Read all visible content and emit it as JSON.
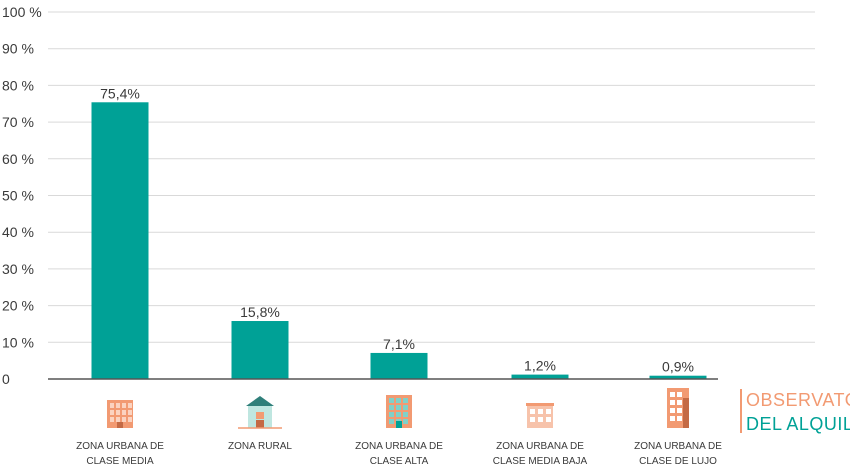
{
  "chart_data": {
    "type": "bar",
    "categories": [
      [
        "ZONA URBANA DE",
        "CLASE MEDIA"
      ],
      [
        "ZONA RURAL"
      ],
      [
        "ZONA URBANA DE",
        "CLASE ALTA"
      ],
      [
        "ZONA URBANA DE",
        "CLASE MEDIA BAJA"
      ],
      [
        "ZONA URBANA DE",
        "CLASE DE LUJO"
      ]
    ],
    "values": [
      75.4,
      15.8,
      7.1,
      1.2,
      0.9
    ],
    "value_labels": [
      "75,4%",
      "15,8%",
      "7,1%",
      "1,2%",
      "0,9%"
    ],
    "yticks": [
      0,
      10,
      20,
      30,
      40,
      50,
      60,
      70,
      80,
      90,
      100
    ],
    "ytick_labels": [
      "0",
      "10 %",
      "20 %",
      "30 %",
      "40 %",
      "50 %",
      "60 %",
      "70 %",
      "80 %",
      "90 %",
      "100 %"
    ],
    "ylim": [
      0,
      100
    ],
    "grid": true,
    "title": "",
    "xlabel": "",
    "ylabel": ""
  },
  "colors": {
    "bar": "#00a196",
    "grid": "#d9d9d9",
    "axis": "#555555",
    "logo_orange": "#f29a72",
    "logo_teal": "#00a196"
  },
  "icons": [
    "building-urban-middle-icon",
    "house-rural-icon",
    "building-urban-high-icon",
    "building-urban-lowmiddle-icon",
    "building-luxury-icon"
  ],
  "logo": {
    "line1": "OBSERVATORIO",
    "line2": "DEL ALQUILER"
  }
}
